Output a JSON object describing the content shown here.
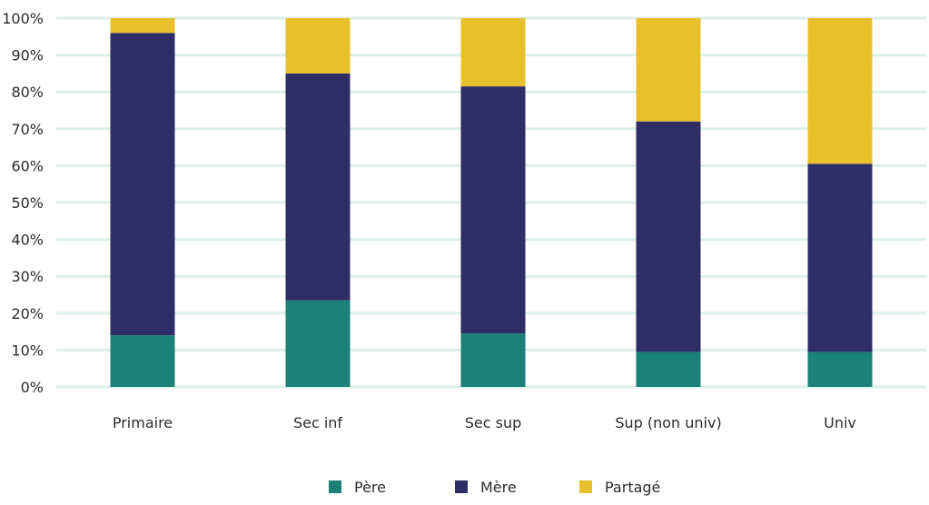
{
  "chart_data": {
    "type": "bar",
    "stacked": true,
    "categories": [
      "Primaire",
      "Sec inf",
      "Sec sup",
      "Sup (non univ)",
      "Univ"
    ],
    "series": [
      {
        "name": "Père",
        "values": [
          14,
          23.5,
          14.5,
          9.5,
          9.5
        ],
        "color": "#1c8178"
      },
      {
        "name": "Mère",
        "values": [
          82,
          61.5,
          67,
          62.5,
          51
        ],
        "color": "#2e2d66"
      },
      {
        "name": "Partagé",
        "values": [
          4,
          15,
          18.5,
          28,
          39.5
        ],
        "color": "#e8c02c"
      }
    ],
    "y_ticks": [
      "0%",
      "10%",
      "20%",
      "30%",
      "40%",
      "50%",
      "60%",
      "70%",
      "80%",
      "90%",
      "100%"
    ],
    "ylim": [
      0,
      100
    ],
    "grid": true,
    "grid_color": "#dcefe8",
    "legend_position": "bottom-center",
    "title": "",
    "xlabel": "",
    "ylabel": ""
  }
}
